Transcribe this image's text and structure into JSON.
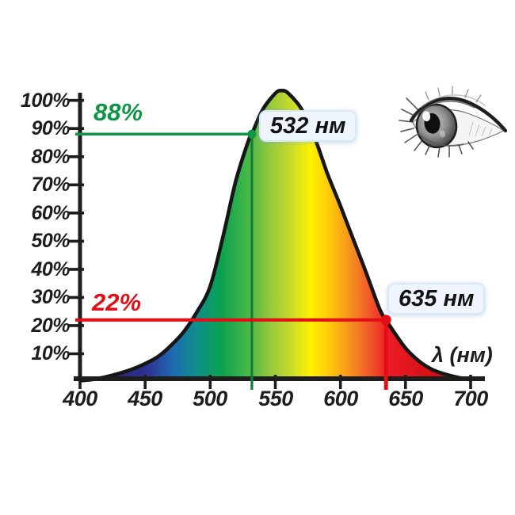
{
  "chart_data": {
    "type": "area",
    "title": "",
    "xlabel": "λ (нм)",
    "ylabel": "",
    "xlim": [
      400,
      700
    ],
    "ylim": [
      0,
      105
    ],
    "grid": false,
    "legend": "none",
    "x_tick_values": [
      400,
      450,
      500,
      550,
      600,
      650,
      700
    ],
    "x_tick_labels": [
      "400",
      "450",
      "500",
      "550",
      "600",
      "650",
      "700"
    ],
    "y_tick_values": [
      100,
      90,
      80,
      70,
      60,
      50,
      40,
      30,
      20,
      10
    ],
    "y_tick_labels": [
      "100%",
      "90%",
      "80%",
      "70%",
      "60%",
      "50%",
      "40%",
      "30%",
      "20%",
      "10%"
    ],
    "series": [
      {
        "name": "eye-spectral-sensitivity",
        "x": [
          400,
          410,
          420,
          430,
          440,
          450,
          460,
          470,
          480,
          490,
          500,
          510,
          520,
          530,
          532,
          540,
          550,
          555,
          560,
          570,
          580,
          590,
          600,
          610,
          620,
          630,
          635,
          640,
          650,
          660,
          670,
          680,
          690,
          700
        ],
        "values": [
          0.4,
          0.9,
          1.8,
          3.0,
          4.5,
          6.5,
          9,
          13,
          18,
          25,
          34,
          52,
          72,
          86.5,
          88,
          96.5,
          102.5,
          103.5,
          102.5,
          97,
          87,
          74,
          62.5,
          50.5,
          38.5,
          26,
          22,
          18.5,
          12,
          7.5,
          4.5,
          2.8,
          1.6,
          0.8
        ]
      }
    ],
    "annotations": [
      {
        "percent_label": "88%",
        "wavelength_label": "532 нм",
        "wavelength": 532,
        "percent": 88,
        "color_key": "green"
      },
      {
        "percent_label": "22%",
        "wavelength_label": "635 нм",
        "wavelength": 635,
        "percent": 22,
        "color_key": "red"
      }
    ],
    "spectrum_gradient": [
      {
        "offset": 0.0,
        "color": "#221a66"
      },
      {
        "offset": 0.1,
        "color": "#2a2878"
      },
      {
        "offset": 0.17,
        "color": "#2e3192"
      },
      {
        "offset": 0.24,
        "color": "#1e6cb0"
      },
      {
        "offset": 0.3,
        "color": "#0e8f8a"
      },
      {
        "offset": 0.36,
        "color": "#0aa14f"
      },
      {
        "offset": 0.42,
        "color": "#3db54a"
      },
      {
        "offset": 0.48,
        "color": "#8ec63f"
      },
      {
        "offset": 0.54,
        "color": "#c9db2a"
      },
      {
        "offset": 0.59,
        "color": "#fff200"
      },
      {
        "offset": 0.64,
        "color": "#fdc70c"
      },
      {
        "offset": 0.69,
        "color": "#f7941d"
      },
      {
        "offset": 0.74,
        "color": "#f1592a"
      },
      {
        "offset": 0.79,
        "color": "#ed1c24"
      },
      {
        "offset": 0.9,
        "color": "#d41116"
      },
      {
        "offset": 1.0,
        "color": "#a50f12"
      }
    ]
  },
  "colors": {
    "green": "#0d9644",
    "green_dark": "#0e7f39",
    "red": "#e30f17",
    "axis": "#1d1d1b",
    "badge_bg": "#eef5fc"
  }
}
